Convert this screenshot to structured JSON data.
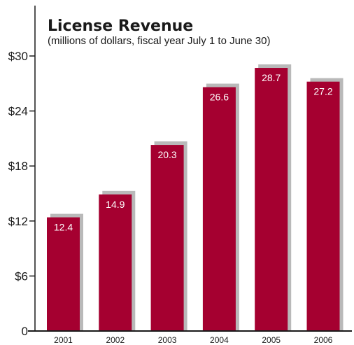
{
  "chart_data": {
    "type": "bar",
    "title": "License Revenue",
    "subtitle": "(millions of dollars, fiscal year July 1 to June 30)",
    "categories": [
      "2001",
      "2002",
      "2003",
      "2004",
      "2005",
      "2006"
    ],
    "values": [
      12.4,
      14.9,
      20.3,
      26.6,
      28.7,
      27.2
    ],
    "value_labels": [
      "12.4",
      "14.9",
      "20.3",
      "26.6",
      "28.7",
      "27.2"
    ],
    "ylim": [
      0,
      30
    ],
    "yticks": [
      0,
      6,
      12,
      18,
      24,
      30
    ],
    "ytick_labels": [
      "0",
      "$6",
      "$12",
      "$18",
      "$24",
      "$30"
    ],
    "xlabel": "",
    "ylabel": "",
    "grid": false,
    "legend": "none",
    "colors": {
      "bar": "#a50030",
      "shadow": "#b9b9b9",
      "axis": "#1a1a1a"
    }
  }
}
